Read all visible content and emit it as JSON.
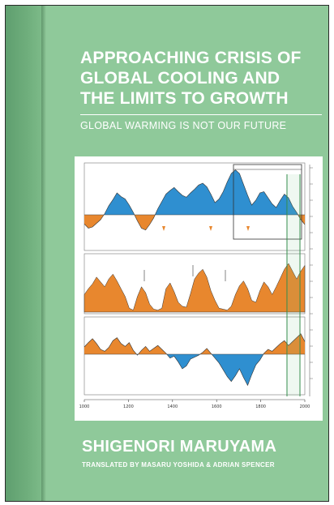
{
  "cover": {
    "background_color": "#8fc99a",
    "spine_color": "#6fae7c",
    "title_lines": [
      "APPROACHING CRISIS OF",
      "GLOBAL COOLING AND",
      "THE LIMITS TO GROWTH"
    ],
    "subtitle": "GLOBAL WARMING IS NOT OUR FUTURE",
    "author": "SHIGENORI MARUYAMA",
    "translators": "TRANSLATED BY MASARU YOSHIDA & ADRIAN SPENCER"
  },
  "figure": {
    "panel_colors": {
      "positive": "#2f8fd0",
      "negative": "#e8872e",
      "solar": "#e8872e"
    },
    "x_ticks": [
      "1000",
      "1200",
      "1400",
      "1600",
      "1800",
      "2000"
    ],
    "top_panel": {
      "top_values": [
        -1.5,
        -2.2,
        -2.0,
        -1.4,
        -0.8,
        0.2,
        1.5,
        2.5,
        3.6,
        3.0,
        2.6,
        1.6,
        0.4,
        -1.0,
        -2.2,
        -2.5,
        -1.6,
        -0.5,
        1.0,
        2.2,
        3.4,
        4.0,
        4.5,
        3.8,
        3.2,
        2.9,
        3.6,
        4.2,
        4.9,
        5.2,
        4.6,
        3.4,
        2.0,
        2.6,
        3.8,
        5.4,
        6.8,
        7.4,
        6.8,
        5.0,
        3.2,
        1.6,
        2.4,
        3.6,
        3.8,
        2.8,
        1.8,
        1.2,
        2.4,
        3.4,
        2.8,
        1.4,
        0.4,
        -0.8,
        -1.6
      ]
    },
    "mid_panel": {
      "mid_values": [
        1.8,
        2.4,
        2.9,
        3.6,
        3.1,
        2.6,
        3.4,
        3.9,
        3.2,
        2.4,
        1.6,
        0.4,
        0.2,
        1.6,
        2.6,
        2.0,
        0.8,
        0.3,
        0.2,
        0.4,
        2.4,
        3.0,
        2.1,
        1.0,
        0.6,
        0.5,
        1.9,
        3.4,
        4.0,
        4.4,
        3.6,
        2.2,
        1.2,
        0.4,
        0.3,
        0.2,
        0.6,
        1.8,
        2.7,
        3.2,
        2.4,
        1.2,
        1.0,
        2.2,
        3.1,
        2.6,
        1.8,
        2.6,
        3.5,
        4.4,
        5.0,
        4.2,
        3.4,
        4.2,
        4.8
      ]
    },
    "bottom_panel": {
      "bottom_values": [
        1.5,
        2.4,
        3.2,
        2.2,
        1.0,
        0.6,
        1.4,
        2.8,
        3.4,
        2.2,
        1.6,
        2.4,
        0.8,
        -0.2,
        0.8,
        1.6,
        0.6,
        1.2,
        1.8,
        1.0,
        0.2,
        -0.8,
        -0.4,
        -1.6,
        -3.0,
        -2.4,
        -1.0,
        -0.6,
        -0.2,
        0.4,
        1.2,
        0.2,
        -0.8,
        -1.8,
        -3.2,
        -4.6,
        -5.6,
        -4.4,
        -3.0,
        -4.8,
        -6.4,
        -4.2,
        -2.2,
        -1.2,
        0.2,
        1.0,
        0.6,
        1.4,
        2.2,
        2.8,
        1.8,
        2.6,
        3.4,
        4.2,
        2.6
      ]
    }
  }
}
